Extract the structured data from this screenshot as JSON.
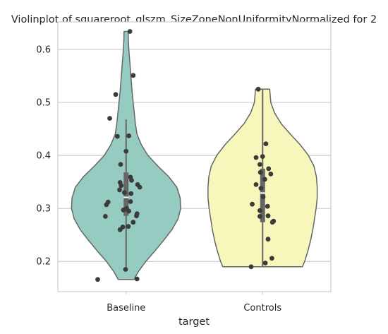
{
  "chart_data": {
    "type": "violin",
    "title": "Violinplot of squareroot_glszm_SizeZoneNonUniformityNormalized for 2",
    "xlabel": "target",
    "ylabel": "",
    "categories": [
      "Baseline",
      "Controls"
    ],
    "ylim": [
      0.143,
      0.652
    ],
    "yticks": [
      0.2,
      0.3,
      0.4,
      0.5,
      0.6
    ],
    "ytick_labels": [
      "0.2",
      "0.3",
      "0.4",
      "0.5",
      "0.6"
    ],
    "grid": true,
    "violins": [
      {
        "category": "Baseline",
        "color": "#95cbc1",
        "min": 0.166,
        "max": 0.634,
        "q1": 0.286,
        "median": 0.321,
        "q3": 0.368,
        "whisker_low": 0.185,
        "whisker_high": 0.468,
        "profile": [
          [
            0.166,
            0.145
          ],
          [
            0.18,
            0.22
          ],
          [
            0.2,
            0.36
          ],
          [
            0.22,
            0.53
          ],
          [
            0.24,
            0.69
          ],
          [
            0.26,
            0.84
          ],
          [
            0.28,
            0.95
          ],
          [
            0.3,
            1.0
          ],
          [
            0.32,
            0.99
          ],
          [
            0.34,
            0.93
          ],
          [
            0.36,
            0.78
          ],
          [
            0.38,
            0.58
          ],
          [
            0.4,
            0.4
          ],
          [
            0.42,
            0.28
          ],
          [
            0.44,
            0.2
          ],
          [
            0.46,
            0.17
          ],
          [
            0.48,
            0.15
          ],
          [
            0.5,
            0.13
          ],
          [
            0.52,
            0.11
          ],
          [
            0.54,
            0.095
          ],
          [
            0.56,
            0.08
          ],
          [
            0.58,
            0.065
          ],
          [
            0.6,
            0.05
          ],
          [
            0.62,
            0.04
          ],
          [
            0.634,
            0.038
          ]
        ],
        "points": [
          [
            0.166,
            -0.52
          ],
          [
            0.167,
            0.2
          ],
          [
            0.185,
            -0.01
          ],
          [
            0.26,
            -0.11
          ],
          [
            0.265,
            -0.06
          ],
          [
            0.266,
            0.04
          ],
          [
            0.274,
            0.13
          ],
          [
            0.285,
            -0.38
          ],
          [
            0.286,
            0.19
          ],
          [
            0.29,
            0.2
          ],
          [
            0.295,
            0.05
          ],
          [
            0.297,
            -0.05
          ],
          [
            0.3,
            0.01
          ],
          [
            0.307,
            -0.36
          ],
          [
            0.312,
            -0.33
          ],
          [
            0.313,
            0.08
          ],
          [
            0.328,
            0.09
          ],
          [
            0.33,
            -0.03
          ],
          [
            0.335,
            -0.12
          ],
          [
            0.34,
            0.25
          ],
          [
            0.343,
            -0.09
          ],
          [
            0.345,
            0.21
          ],
          [
            0.349,
            -0.11
          ],
          [
            0.353,
            0.1
          ],
          [
            0.359,
            0.08
          ],
          [
            0.383,
            -0.1
          ],
          [
            0.408,
            0.0
          ],
          [
            0.436,
            -0.16
          ],
          [
            0.437,
            0.05
          ],
          [
            0.47,
            -0.3
          ],
          [
            0.515,
            -0.19
          ],
          [
            0.551,
            0.13
          ],
          [
            0.634,
            0.07
          ]
        ]
      },
      {
        "category": "Controls",
        "color": "#f7f7bb",
        "min": 0.19,
        "max": 0.525,
        "q1": 0.274,
        "median": 0.329,
        "q3": 0.375,
        "whisker_low": 0.19,
        "whisker_high": 0.525,
        "profile": [
          [
            0.19,
            0.73
          ],
          [
            0.2,
            0.77
          ],
          [
            0.22,
            0.83
          ],
          [
            0.24,
            0.88
          ],
          [
            0.26,
            0.92
          ],
          [
            0.28,
            0.95
          ],
          [
            0.3,
            0.98
          ],
          [
            0.32,
            1.0
          ],
          [
            0.34,
            1.0
          ],
          [
            0.36,
            0.985
          ],
          [
            0.38,
            0.94
          ],
          [
            0.4,
            0.84
          ],
          [
            0.42,
            0.69
          ],
          [
            0.44,
            0.51
          ],
          [
            0.46,
            0.34
          ],
          [
            0.48,
            0.22
          ],
          [
            0.5,
            0.15
          ],
          [
            0.525,
            0.13
          ]
        ],
        "points": [
          [
            0.19,
            -0.21
          ],
          [
            0.197,
            0.05
          ],
          [
            0.206,
            0.17
          ],
          [
            0.242,
            0.1
          ],
          [
            0.274,
            0.18
          ],
          [
            0.276,
            0.2
          ],
          [
            0.285,
            -0.05
          ],
          [
            0.286,
            0.1
          ],
          [
            0.296,
            -0.05
          ],
          [
            0.304,
            0.09
          ],
          [
            0.308,
            -0.19
          ],
          [
            0.322,
            0.01
          ],
          [
            0.338,
            -0.03
          ],
          [
            0.345,
            -0.12
          ],
          [
            0.355,
            0.04
          ],
          [
            0.365,
            0.15
          ],
          [
            0.368,
            -0.04
          ],
          [
            0.375,
            0.11
          ],
          [
            0.383,
            -0.05
          ],
          [
            0.396,
            -0.12
          ],
          [
            0.398,
            0.0
          ],
          [
            0.422,
            0.06
          ],
          [
            0.525,
            -0.08
          ]
        ]
      }
    ]
  }
}
